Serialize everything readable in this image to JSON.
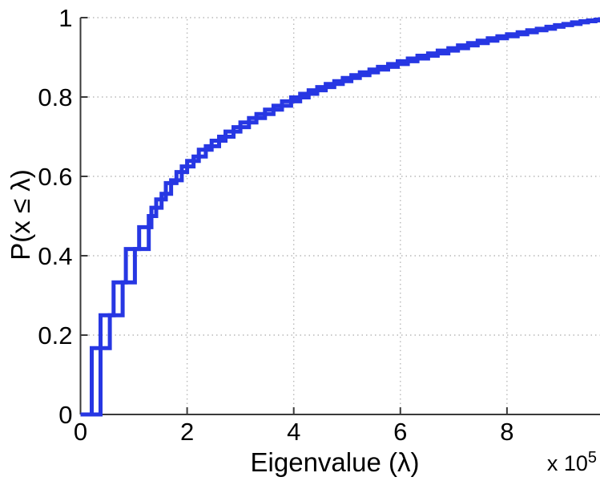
{
  "figure": {
    "background": "#ffffff"
  },
  "chart_data": {
    "type": "line",
    "subtype": "empirical-cdf-step",
    "title": "",
    "xlabel": "Eigenvalue (λ)",
    "ylabel": "P(x ≤ λ)",
    "x_offset_label": {
      "base": "x 10",
      "exponent": "5"
    },
    "xlim": [
      0,
      9.745
    ],
    "ylim": [
      0,
      1
    ],
    "xticks": [
      0,
      2,
      4,
      6,
      8
    ],
    "xtick_labels": [
      "0",
      "2",
      "4",
      "6",
      "8"
    ],
    "yticks": [
      0,
      0.2,
      0.4,
      0.6,
      0.8,
      1
    ],
    "ytick_labels": [
      "0",
      "0.2",
      "0.4",
      "0.6",
      "0.8",
      "1"
    ],
    "grid": "dotted",
    "legend_position": "none",
    "colors": {
      "line": "#2737e3",
      "axis": "#3a3a3a",
      "grid": "#b9b9b9"
    },
    "x_units": "1e5",
    "series": [
      {
        "name": "ecdf-a",
        "color": "#2737e3",
        "points": [
          [
            0.21,
            0.167
          ],
          [
            0.55,
            0.25
          ],
          [
            0.79,
            0.333
          ],
          [
            1.02,
            0.417
          ],
          [
            1.28,
            0.5
          ],
          [
            1.42,
            0.542
          ],
          [
            1.6,
            0.583
          ],
          [
            1.8,
            0.611
          ],
          [
            2.0,
            0.639
          ],
          [
            2.22,
            0.667
          ],
          [
            2.46,
            0.69
          ],
          [
            2.72,
            0.713
          ],
          [
            3.0,
            0.736
          ],
          [
            3.3,
            0.757
          ],
          [
            3.62,
            0.778
          ],
          [
            3.95,
            0.799
          ],
          [
            4.28,
            0.817
          ],
          [
            4.6,
            0.833
          ],
          [
            4.92,
            0.848
          ],
          [
            5.24,
            0.862
          ],
          [
            5.58,
            0.876
          ],
          [
            5.95,
            0.89
          ],
          [
            6.32,
            0.904
          ],
          [
            6.7,
            0.917
          ],
          [
            7.08,
            0.93
          ],
          [
            7.45,
            0.942
          ],
          [
            7.82,
            0.953
          ],
          [
            8.2,
            0.963
          ],
          [
            8.56,
            0.972
          ],
          [
            8.9,
            0.981
          ],
          [
            9.22,
            0.988
          ],
          [
            9.52,
            0.993
          ],
          [
            9.74,
            0.996
          ]
        ]
      },
      {
        "name": "ecdf-b",
        "color": "#2737e3",
        "points": [
          [
            0.375,
            0.25
          ],
          [
            0.62,
            0.333
          ],
          [
            0.85,
            0.417
          ],
          [
            1.1,
            0.472
          ],
          [
            1.33,
            0.521
          ],
          [
            1.52,
            0.556
          ],
          [
            1.7,
            0.59
          ],
          [
            1.9,
            0.625
          ],
          [
            2.12,
            0.65
          ],
          [
            2.35,
            0.676
          ],
          [
            2.6,
            0.7
          ],
          [
            2.87,
            0.724
          ],
          [
            3.16,
            0.747
          ],
          [
            3.46,
            0.768
          ],
          [
            3.78,
            0.789
          ],
          [
            4.12,
            0.808
          ],
          [
            4.44,
            0.825
          ],
          [
            4.76,
            0.84
          ],
          [
            5.08,
            0.855
          ],
          [
            5.42,
            0.869
          ],
          [
            5.77,
            0.883
          ],
          [
            6.14,
            0.897
          ],
          [
            6.52,
            0.91
          ],
          [
            6.9,
            0.923
          ],
          [
            7.27,
            0.936
          ],
          [
            7.64,
            0.948
          ],
          [
            8.0,
            0.958
          ],
          [
            8.38,
            0.968
          ],
          [
            8.74,
            0.977
          ],
          [
            9.06,
            0.984
          ],
          [
            9.38,
            0.991
          ],
          [
            9.66,
            0.995
          ]
        ]
      }
    ]
  }
}
